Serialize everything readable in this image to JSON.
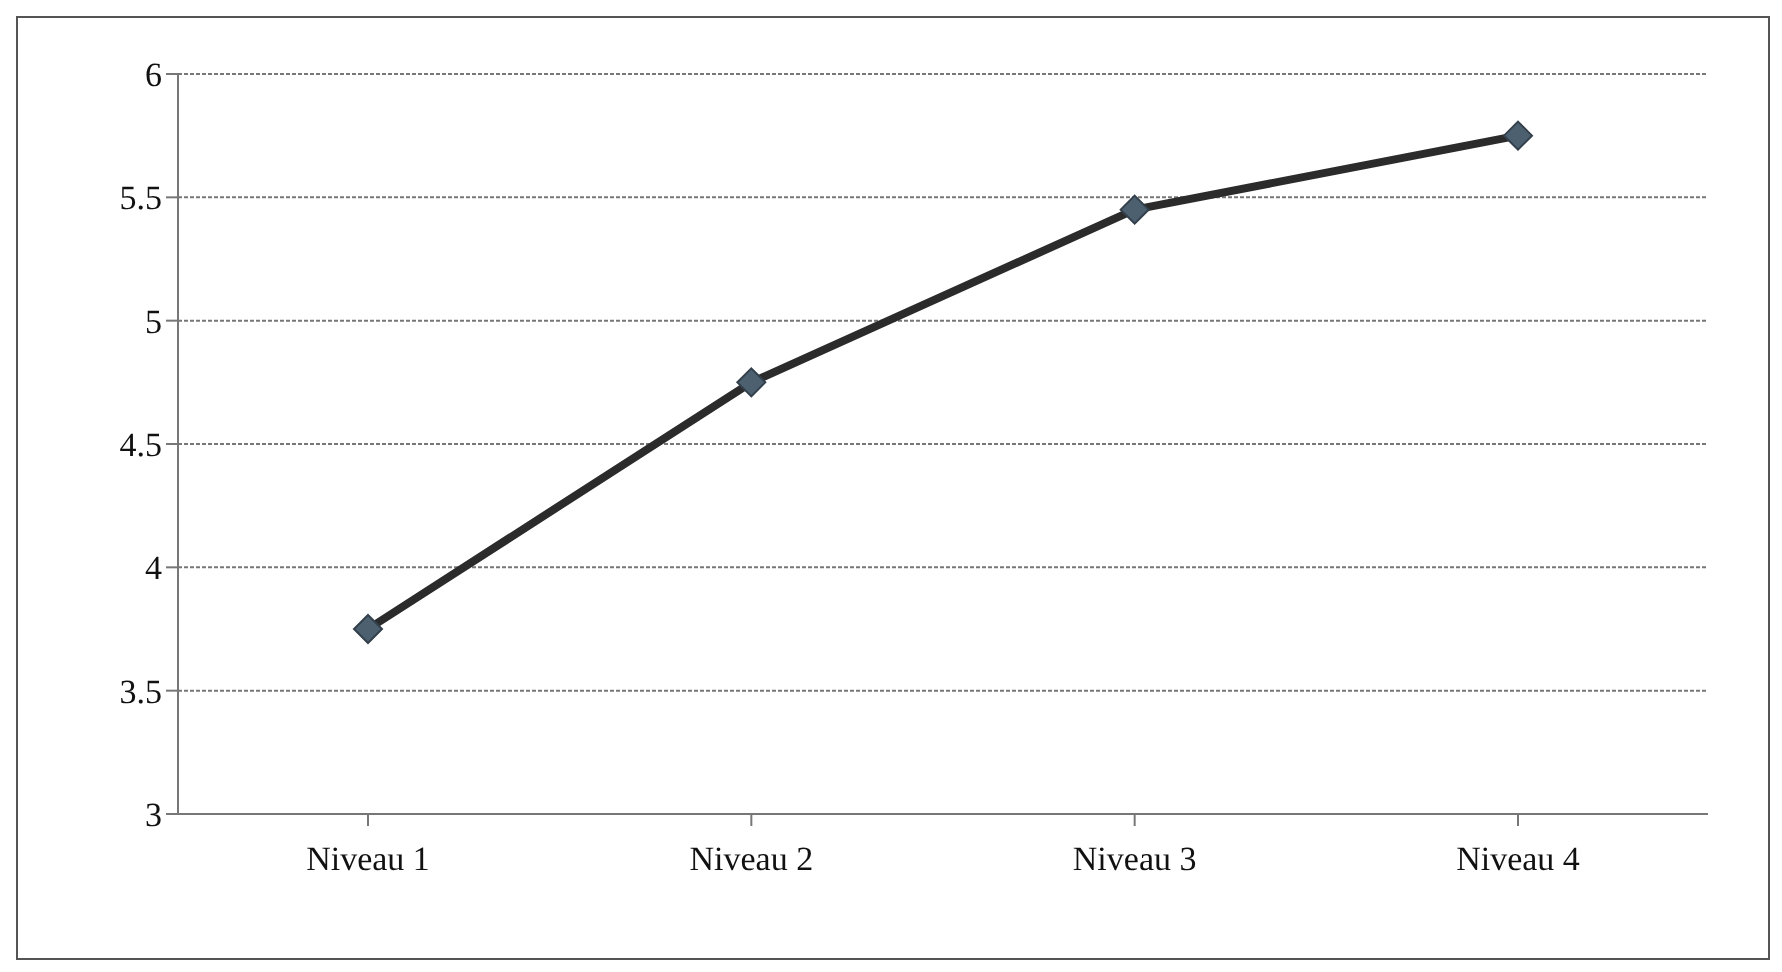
{
  "chart_data": {
    "type": "line",
    "categories": [
      "Niveau 1",
      "Niveau 2",
      "Niveau 3",
      "Niveau 4"
    ],
    "series": [
      {
        "color": "#2b2b2b",
        "values": [
          3.75,
          4.75,
          5.45,
          5.75
        ]
      }
    ],
    "ylim": [
      3,
      6
    ],
    "yticks": [
      3,
      3.5,
      4,
      4.5,
      5,
      5.5,
      6
    ],
    "grid": "y",
    "marker": "diamond",
    "line_style": "solid",
    "legend": false
  }
}
